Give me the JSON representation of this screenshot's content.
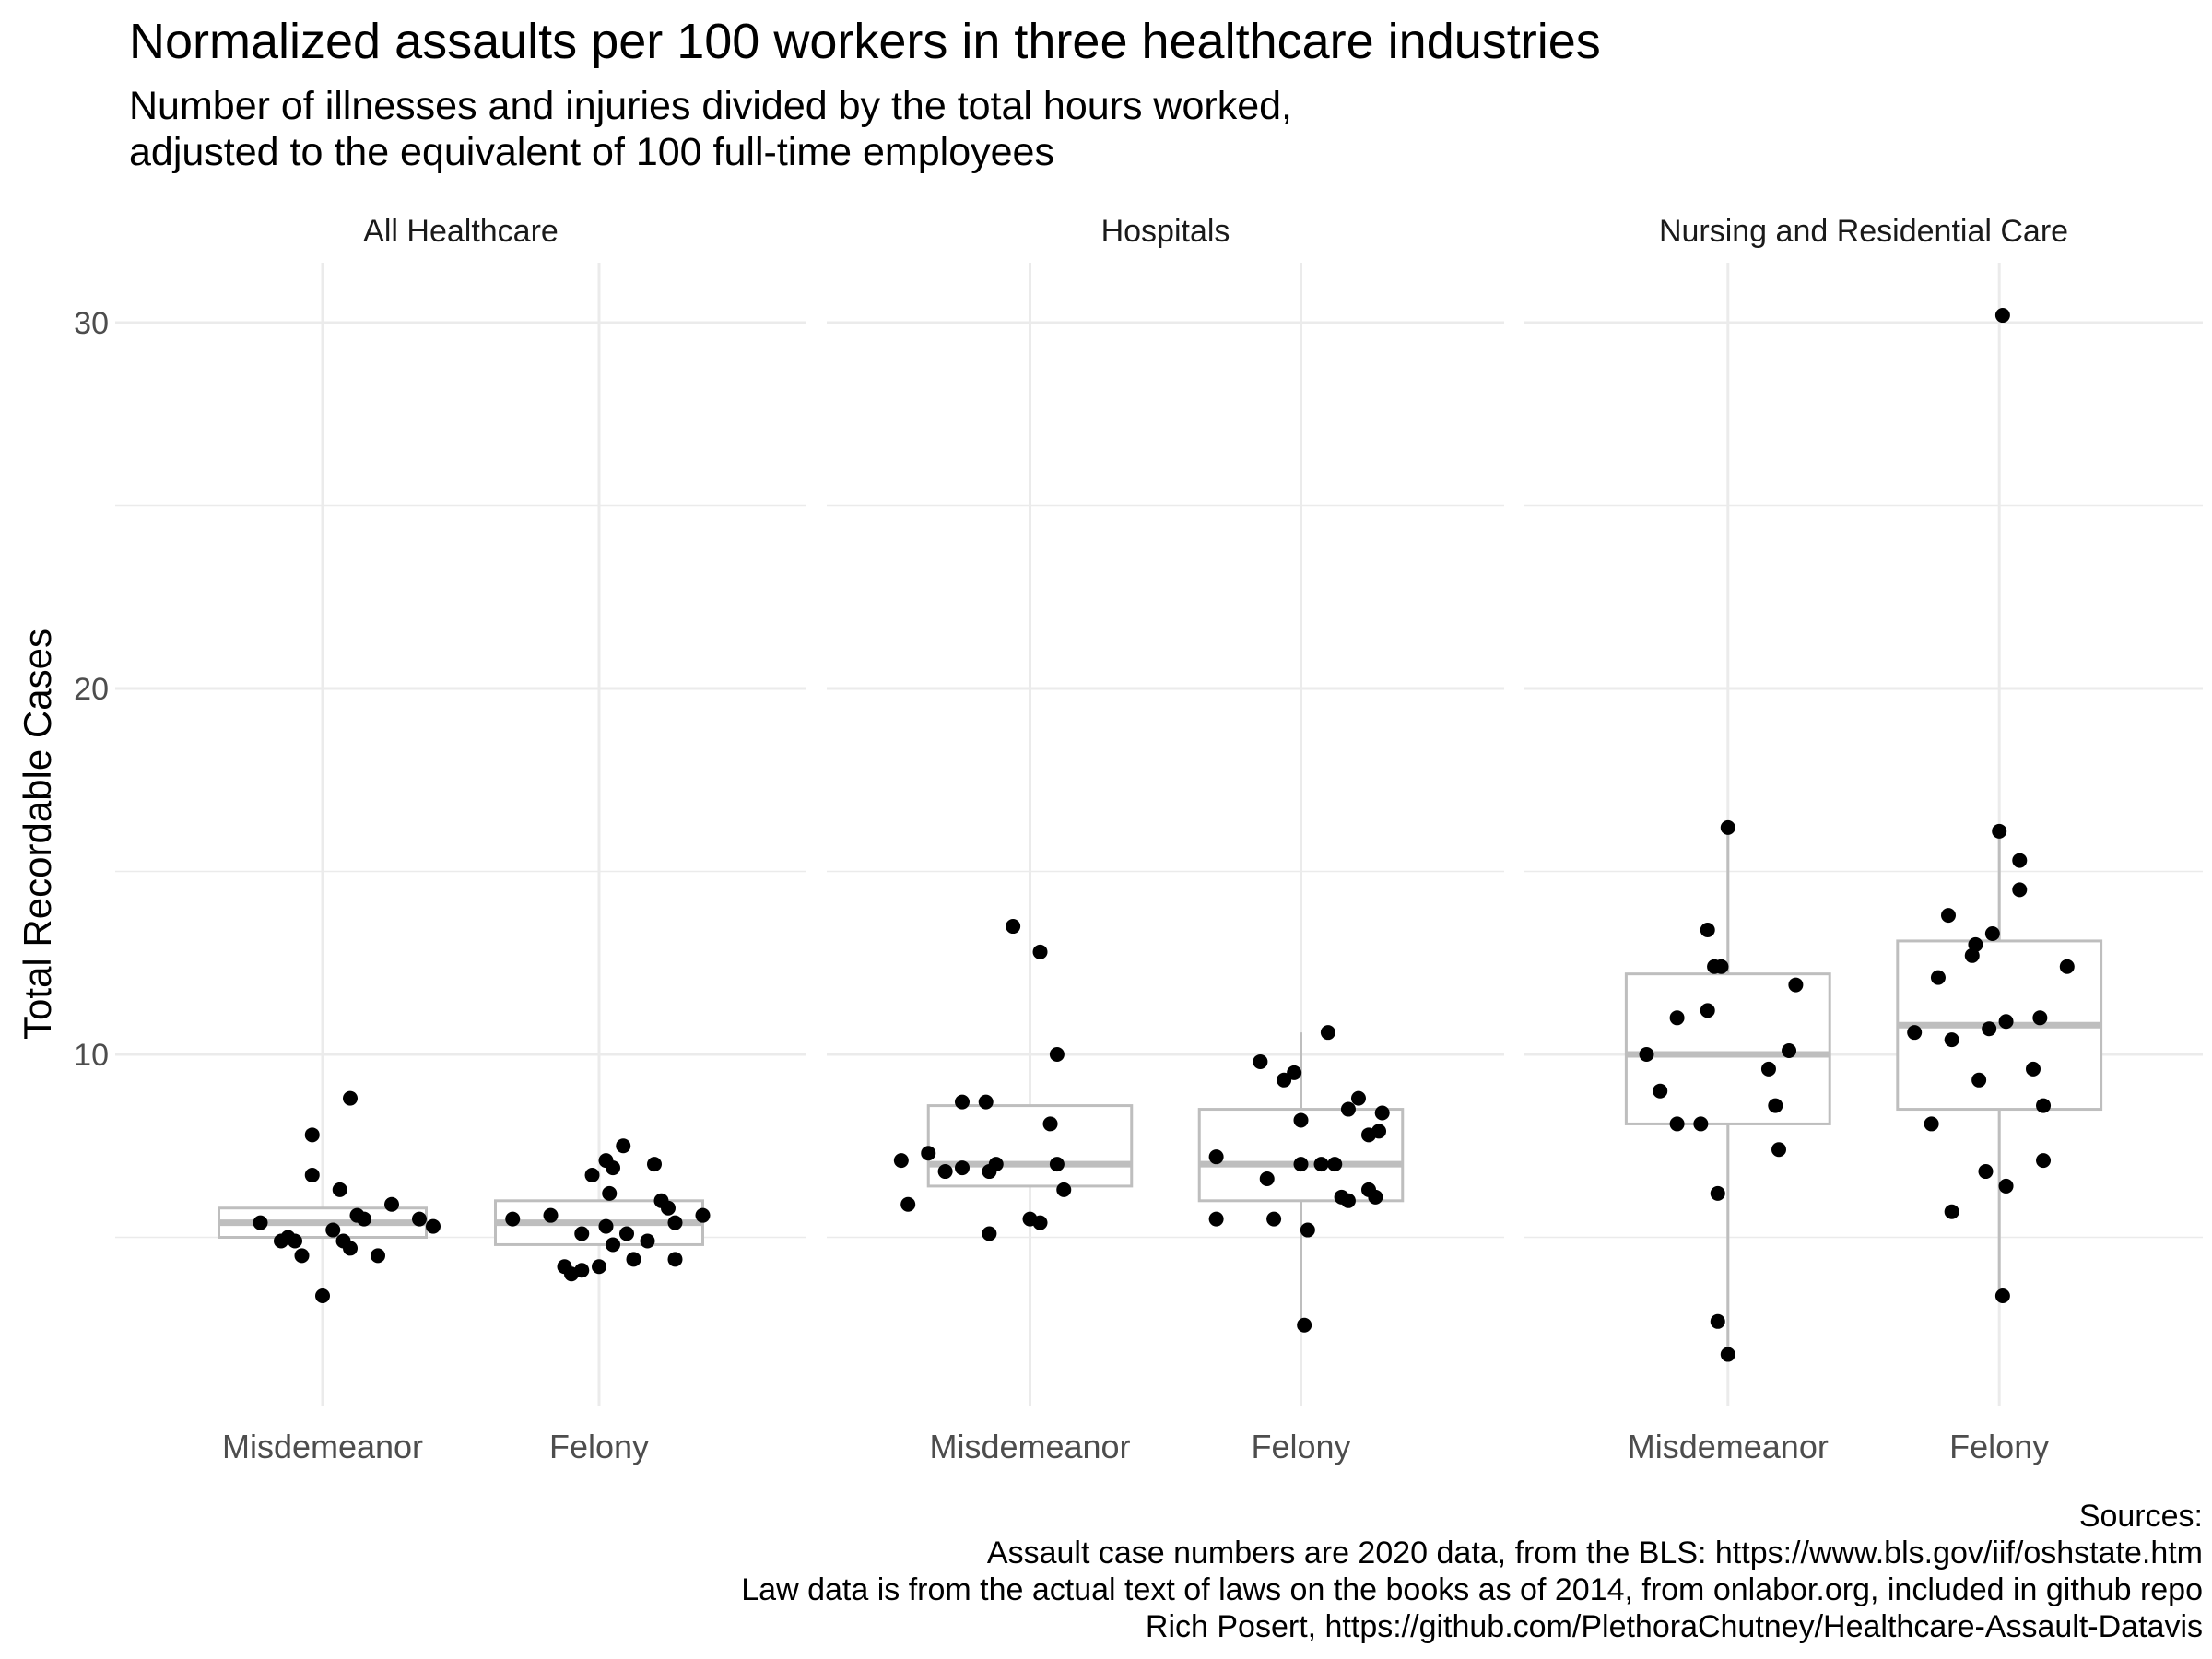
{
  "title": "Normalized assaults per 100 workers in three healthcare industries",
  "subtitle_lines": [
    "Number of illnesses and injuries divided by the total hours worked,",
    "adjusted to the equivalent of 100 full-time employees"
  ],
  "sources_lines": [
    "Sources:",
    "Assault case numbers are 2020 data, from the BLS: https://www.bls.gov/iif/oshstate.htm",
    "Law data is from the actual text of laws on the books as of 2014, from onlabor.org, included in github repo",
    "Rich Posert, https://github.com/PlethoraChutney/Healthcare-Assault-Datavis"
  ],
  "colors": {
    "points": "#000000",
    "box": "#bebebe",
    "grid": "#ebebeb",
    "axis_text": "#4d4d4d"
  },
  "chart_data": {
    "type": "boxplot+jitter",
    "ylabel": "Total Recordable Cases",
    "xlabel": "",
    "ylim": [
      1,
      31
    ],
    "yticks": [
      10,
      20,
      30
    ],
    "grid": true,
    "categories": [
      "Misdemeanor",
      "Felony"
    ],
    "facets": [
      {
        "name": "All Healthcare",
        "groups": [
          {
            "category": "Misdemeanor",
            "box": {
              "lower_whisker": 5.0,
              "q1": 5.0,
              "median": 5.4,
              "q3": 5.8,
              "upper_whisker": 5.8
            },
            "points": [
              {
                "x_offset": -0.18,
                "y": 5.4
              },
              {
                "x_offset": -0.12,
                "y": 4.9
              },
              {
                "x_offset": -0.03,
                "y": 6.7
              },
              {
                "x_offset": 0.05,
                "y": 6.3
              },
              {
                "x_offset": -0.1,
                "y": 5.0
              },
              {
                "x_offset": -0.08,
                "y": 4.9
              },
              {
                "x_offset": -0.06,
                "y": 4.5
              },
              {
                "x_offset": 0.03,
                "y": 5.2
              },
              {
                "x_offset": 0.06,
                "y": 4.9
              },
              {
                "x_offset": 0.1,
                "y": 5.6
              },
              {
                "x_offset": 0.12,
                "y": 5.5
              },
              {
                "x_offset": 0.0,
                "y": 3.4
              },
              {
                "x_offset": 0.08,
                "y": 4.7
              },
              {
                "x_offset": 0.16,
                "y": 4.5
              },
              {
                "x_offset": 0.08,
                "y": 8.8
              },
              {
                "x_offset": -0.03,
                "y": 7.8
              },
              {
                "x_offset": 0.2,
                "y": 5.9
              },
              {
                "x_offset": 0.28,
                "y": 5.5
              },
              {
                "x_offset": 0.32,
                "y": 5.3
              }
            ]
          },
          {
            "category": "Felony",
            "box": {
              "lower_whisker": 4.8,
              "q1": 4.8,
              "median": 5.4,
              "q3": 6.0,
              "upper_whisker": 6.0
            },
            "points": [
              {
                "x_offset": -0.25,
                "y": 5.5
              },
              {
                "x_offset": -0.14,
                "y": 5.6
              },
              {
                "x_offset": -0.1,
                "y": 4.2
              },
              {
                "x_offset": -0.08,
                "y": 4.0
              },
              {
                "x_offset": -0.05,
                "y": 4.1
              },
              {
                "x_offset": -0.05,
                "y": 5.1
              },
              {
                "x_offset": -0.02,
                "y": 6.7
              },
              {
                "x_offset": 0.0,
                "y": 4.2
              },
              {
                "x_offset": 0.02,
                "y": 5.3
              },
              {
                "x_offset": 0.02,
                "y": 7.1
              },
              {
                "x_offset": 0.03,
                "y": 6.2
              },
              {
                "x_offset": 0.04,
                "y": 4.8
              },
              {
                "x_offset": 0.04,
                "y": 6.9
              },
              {
                "x_offset": 0.07,
                "y": 7.5
              },
              {
                "x_offset": 0.08,
                "y": 5.1
              },
              {
                "x_offset": 0.1,
                "y": 4.4
              },
              {
                "x_offset": 0.14,
                "y": 4.9
              },
              {
                "x_offset": 0.16,
                "y": 7.0
              },
              {
                "x_offset": 0.18,
                "y": 6.0
              },
              {
                "x_offset": 0.2,
                "y": 5.8
              },
              {
                "x_offset": 0.22,
                "y": 4.4
              },
              {
                "x_offset": 0.22,
                "y": 5.4
              },
              {
                "x_offset": 0.3,
                "y": 5.6
              }
            ]
          }
        ]
      },
      {
        "name": "Hospitals",
        "groups": [
          {
            "category": "Misdemeanor",
            "box": {
              "lower_whisker": 6.4,
              "q1": 6.4,
              "median": 7.0,
              "q3": 8.6,
              "upper_whisker": 8.6
            },
            "points": [
              {
                "x_offset": -0.36,
                "y": 5.9
              },
              {
                "x_offset": -0.38,
                "y": 7.1
              },
              {
                "x_offset": -0.3,
                "y": 7.3
              },
              {
                "x_offset": -0.25,
                "y": 6.8
              },
              {
                "x_offset": -0.2,
                "y": 6.9
              },
              {
                "x_offset": -0.12,
                "y": 6.8
              },
              {
                "x_offset": -0.12,
                "y": 5.1
              },
              {
                "x_offset": -0.1,
                "y": 7.0
              },
              {
                "x_offset": -0.05,
                "y": 13.5
              },
              {
                "x_offset": 0.0,
                "y": 5.5
              },
              {
                "x_offset": 0.03,
                "y": 5.4
              },
              {
                "x_offset": 0.03,
                "y": 12.8
              },
              {
                "x_offset": 0.06,
                "y": 8.1
              },
              {
                "x_offset": 0.08,
                "y": 10.0
              },
              {
                "x_offset": 0.08,
                "y": 7.0
              },
              {
                "x_offset": 0.1,
                "y": 6.3
              },
              {
                "x_offset": -0.2,
                "y": 8.7
              },
              {
                "x_offset": -0.13,
                "y": 8.7
              }
            ]
          },
          {
            "category": "Felony",
            "box": {
              "lower_whisker": 2.6,
              "q1": 6.0,
              "median": 7.0,
              "q3": 8.5,
              "upper_whisker": 10.6
            },
            "points": [
              {
                "x_offset": -0.25,
                "y": 5.5
              },
              {
                "x_offset": -0.25,
                "y": 7.2
              },
              {
                "x_offset": -0.08,
                "y": 5.5
              },
              {
                "x_offset": -0.1,
                "y": 6.6
              },
              {
                "x_offset": -0.12,
                "y": 9.8
              },
              {
                "x_offset": -0.05,
                "y": 9.3
              },
              {
                "x_offset": -0.02,
                "y": 9.5
              },
              {
                "x_offset": 0.0,
                "y": 8.2
              },
              {
                "x_offset": 0.0,
                "y": 7.0
              },
              {
                "x_offset": 0.01,
                "y": 2.6
              },
              {
                "x_offset": 0.02,
                "y": 5.2
              },
              {
                "x_offset": 0.06,
                "y": 7.0
              },
              {
                "x_offset": 0.08,
                "y": 10.6
              },
              {
                "x_offset": 0.1,
                "y": 7.0
              },
              {
                "x_offset": 0.12,
                "y": 6.1
              },
              {
                "x_offset": 0.14,
                "y": 6.0
              },
              {
                "x_offset": 0.14,
                "y": 8.5
              },
              {
                "x_offset": 0.17,
                "y": 8.8
              },
              {
                "x_offset": 0.2,
                "y": 6.3
              },
              {
                "x_offset": 0.2,
                "y": 7.8
              },
              {
                "x_offset": 0.22,
                "y": 6.1
              },
              {
                "x_offset": 0.23,
                "y": 7.9
              },
              {
                "x_offset": 0.24,
                "y": 8.4
              }
            ]
          }
        ]
      },
      {
        "name": "Nursing and Residential Care",
        "groups": [
          {
            "category": "Misdemeanor",
            "box": {
              "lower_whisker": 1.8,
              "q1": 8.1,
              "median": 10.0,
              "q3": 12.2,
              "upper_whisker": 16.2
            },
            "points": [
              {
                "x_offset": -0.24,
                "y": 10.0
              },
              {
                "x_offset": -0.2,
                "y": 9.0
              },
              {
                "x_offset": -0.15,
                "y": 11.0
              },
              {
                "x_offset": -0.15,
                "y": 8.1
              },
              {
                "x_offset": -0.08,
                "y": 8.1
              },
              {
                "x_offset": -0.06,
                "y": 11.2
              },
              {
                "x_offset": -0.04,
                "y": 12.4
              },
              {
                "x_offset": -0.02,
                "y": 12.4
              },
              {
                "x_offset": -0.03,
                "y": 6.2
              },
              {
                "x_offset": -0.03,
                "y": 2.7
              },
              {
                "x_offset": -0.06,
                "y": 13.4
              },
              {
                "x_offset": 0.0,
                "y": 1.8
              },
              {
                "x_offset": 0.0,
                "y": 16.2
              },
              {
                "x_offset": 0.12,
                "y": 9.6
              },
              {
                "x_offset": 0.14,
                "y": 8.6
              },
              {
                "x_offset": 0.15,
                "y": 7.4
              },
              {
                "x_offset": 0.18,
                "y": 10.1
              },
              {
                "x_offset": 0.2,
                "y": 11.9
              }
            ]
          },
          {
            "category": "Felony",
            "box": {
              "lower_whisker": 3.4,
              "q1": 8.5,
              "median": 10.8,
              "q3": 13.1,
              "upper_whisker": 16.1
            },
            "points": [
              {
                "x_offset": -0.25,
                "y": 10.6
              },
              {
                "x_offset": -0.2,
                "y": 8.1
              },
              {
                "x_offset": -0.18,
                "y": 12.1
              },
              {
                "x_offset": -0.15,
                "y": 13.8
              },
              {
                "x_offset": -0.14,
                "y": 5.7
              },
              {
                "x_offset": -0.14,
                "y": 10.4
              },
              {
                "x_offset": -0.08,
                "y": 12.7
              },
              {
                "x_offset": -0.07,
                "y": 13.0
              },
              {
                "x_offset": -0.06,
                "y": 9.3
              },
              {
                "x_offset": -0.04,
                "y": 6.8
              },
              {
                "x_offset": -0.03,
                "y": 10.7
              },
              {
                "x_offset": -0.02,
                "y": 13.3
              },
              {
                "x_offset": 0.0,
                "y": 16.1
              },
              {
                "x_offset": 0.01,
                "y": 30.2
              },
              {
                "x_offset": 0.01,
                "y": 3.4
              },
              {
                "x_offset": 0.02,
                "y": 6.4
              },
              {
                "x_offset": 0.02,
                "y": 10.9
              },
              {
                "x_offset": 0.06,
                "y": 15.3
              },
              {
                "x_offset": 0.06,
                "y": 14.5
              },
              {
                "x_offset": 0.1,
                "y": 9.6
              },
              {
                "x_offset": 0.12,
                "y": 11.0
              },
              {
                "x_offset": 0.13,
                "y": 8.6
              },
              {
                "x_offset": 0.13,
                "y": 7.1
              },
              {
                "x_offset": 0.2,
                "y": 12.4
              }
            ]
          }
        ]
      }
    ]
  }
}
